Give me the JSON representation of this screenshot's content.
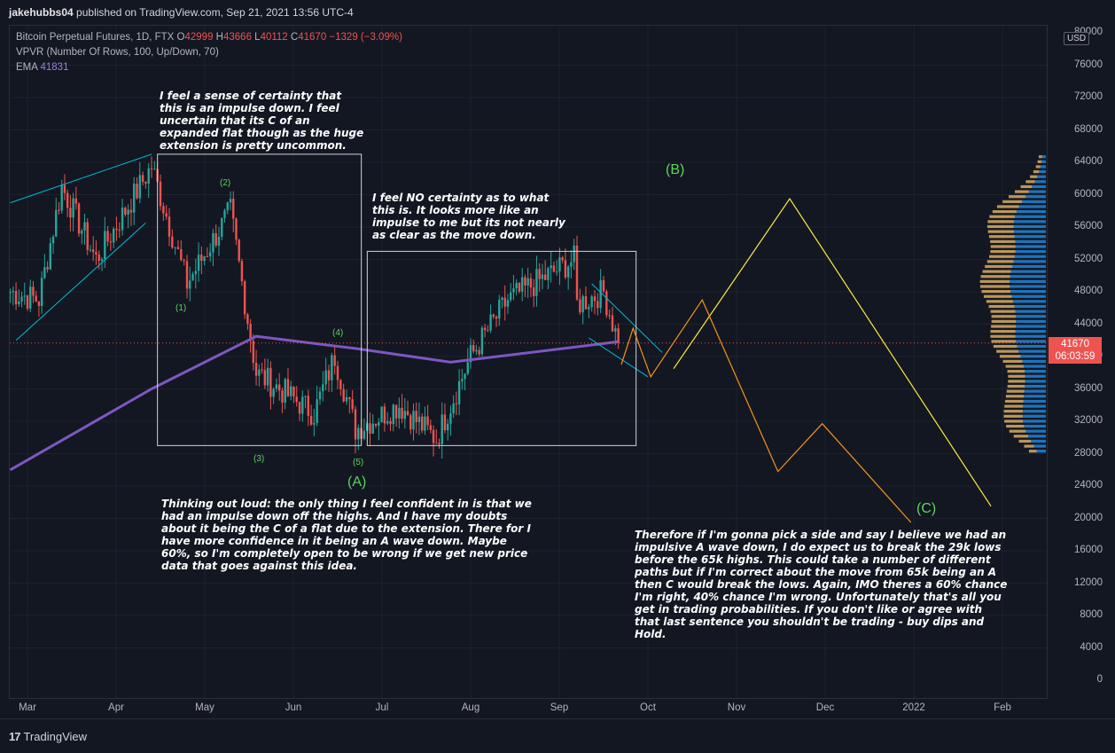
{
  "header": {
    "author": "jakehubbs04",
    "published_text": "published on TradingView.com, Sep 21, 2021 13:56 UTC-4"
  },
  "legend": {
    "symbol": "Bitcoin Perpetual Futures, 1D, FTX",
    "o_label": "O",
    "o": "42999",
    "h_label": "H",
    "h": "43666",
    "l_label": "L",
    "l": "40112",
    "c_label": "C",
    "c": "41670",
    "change": "−1329 (−3.09%)",
    "vpvr": "VPVR (Number Of Rows, 100, Up/Down, 70)",
    "ema_label": "EMA",
    "ema_value": "41831"
  },
  "price_axis": {
    "currency": "USD",
    "ticks": [
      "80000",
      "76000",
      "72000",
      "68000",
      "64000",
      "60000",
      "56000",
      "52000",
      "48000",
      "44000",
      "40000",
      "36000",
      "32000",
      "28000",
      "24000",
      "20000",
      "16000",
      "12000",
      "8000",
      "4000",
      "0"
    ],
    "last_price": "41670",
    "countdown": "06:03:59"
  },
  "time_axis": {
    "ticks": [
      "Mar",
      "Apr",
      "May",
      "Jun",
      "Jul",
      "Aug",
      "Sep",
      "Oct",
      "Nov",
      "Dec",
      "2022",
      "Feb"
    ]
  },
  "footer": {
    "brand": "TradingView",
    "mark": "17"
  },
  "colors": {
    "up": "#26a69a",
    "down": "#ef5350",
    "ema": "#7e57c2",
    "trend": "#00bcd4",
    "path_a": "#ffeb3b",
    "path_b": "#f7931a",
    "label": "#5cd65c",
    "vpvr_up": "#2196f3",
    "vpvr_down": "#f5c16c"
  },
  "annotations": {
    "note1": "I feel a sense of certainty that\nthis is an impulse down. I feel\nuncertain that its C of an\nexpanded flat though as the huge\nextension is pretty uncommon.",
    "note2": "I feel NO certainty as to what\nthis is.  It looks more like an\nimpulse to me but its not nearly\nas clear as the move down.",
    "note3": "Thinking out loud: the only thing I feel confident in is that we\nhad an impulse down off the highs.   And I have my doubts\nabout it being the C of a flat due to the extension.  There for I\nhave more confidence in it being an A wave down.   Maybe\n60%, so I'm completely open to be wrong if we get new price\ndata that goes against this idea.",
    "note4": "Therefore if I'm gonna pick a side and say I believe we had an\nimpulsive A wave down, I do expect us to break the 29k lows\nbefore the 65k highs.  This could take a number of different\npaths but if I'm correct about the move from 65k being an A\nthen C would break the lows.  Again, IMO theres a 60% chance\nI'm right, 40% chance I'm wrong.  Unfortunately that's all you\nget in trading probabilities.  If you don't like or agree with\nthat last sentence you shouldn't be trading - buy dips and\nHold."
  },
  "wave_labels": {
    "w1": "(1)",
    "w2": "(2)",
    "w3": "(3)",
    "w4": "(4)",
    "w5": "(5)",
    "A": "(A)",
    "B": "(B)",
    "C": "(C)"
  },
  "chart_data": {
    "type": "candlestick",
    "title": "Bitcoin Perpetual Futures, 1D, FTX",
    "ylim": [
      0,
      80000
    ],
    "x_ticks": [
      "Mar",
      "Apr",
      "May",
      "Jun",
      "Jul",
      "Aug",
      "Sep",
      "Oct",
      "Nov",
      "Dec",
      "2022",
      "Feb"
    ],
    "close_path": [
      {
        "date": "2021-02-23",
        "close": 48000
      },
      {
        "date": "2021-03-05",
        "close": 47000
      },
      {
        "date": "2021-03-13",
        "close": 61000
      },
      {
        "date": "2021-03-25",
        "close": 52000
      },
      {
        "date": "2021-04-13",
        "close": 63500
      },
      {
        "date": "2021-04-25",
        "close": 49000
      },
      {
        "date": "2021-05-10",
        "close": 58000
      },
      {
        "date": "2021-05-19",
        "close": 38000
      },
      {
        "date": "2021-06-08",
        "close": 33000
      },
      {
        "date": "2021-06-15",
        "close": 40000
      },
      {
        "date": "2021-06-22",
        "close": 31000
      },
      {
        "date": "2021-07-07",
        "close": 34000
      },
      {
        "date": "2021-07-20",
        "close": 29800
      },
      {
        "date": "2021-08-01",
        "close": 40000
      },
      {
        "date": "2021-08-14",
        "close": 47000
      },
      {
        "date": "2021-09-06",
        "close": 52000
      },
      {
        "date": "2021-09-07",
        "close": 46500
      },
      {
        "date": "2021-09-16",
        "close": 48000
      },
      {
        "date": "2021-09-21",
        "close": 41670
      }
    ],
    "ema": [
      {
        "date": "2021-02-23",
        "value": 26000
      },
      {
        "date": "2021-04-13",
        "value": 36000
      },
      {
        "date": "2021-05-19",
        "value": 42500
      },
      {
        "date": "2021-06-22",
        "value": 41000
      },
      {
        "date": "2021-07-25",
        "value": 39300
      },
      {
        "date": "2021-09-21",
        "value": 41831
      }
    ],
    "projection_yellow": [
      {
        "date": "2021-10-10",
        "value": 38500
      },
      {
        "date": "2021-11-19",
        "value": 59500
      },
      {
        "date": "2022-01-28",
        "value": 21500
      }
    ],
    "projection_orange": [
      {
        "date": "2021-09-22",
        "value": 39000
      },
      {
        "date": "2021-09-26",
        "value": 43500
      },
      {
        "date": "2021-10-02",
        "value": 37500
      },
      {
        "date": "2021-10-20",
        "value": 47000
      },
      {
        "date": "2021-11-15",
        "value": 25800
      },
      {
        "date": "2021-11-30",
        "value": 31700
      },
      {
        "date": "2021-12-31",
        "value": 19500
      }
    ],
    "vpvr_range": [
      28000,
      65000
    ],
    "last_price": 41670
  }
}
